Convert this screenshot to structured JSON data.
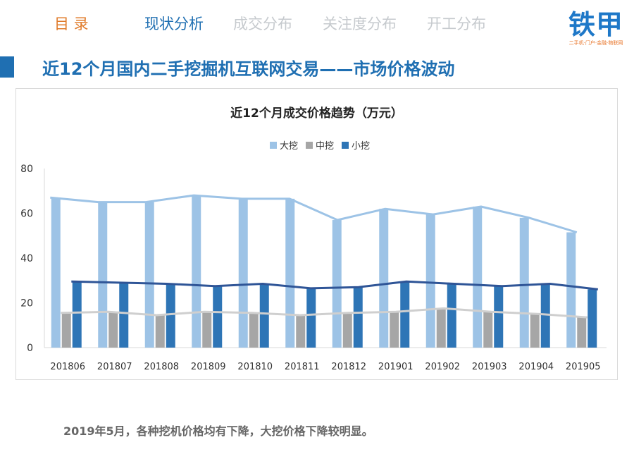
{
  "nav": {
    "items": [
      {
        "label": "目 录",
        "state": "toc"
      },
      {
        "label": "现状分析",
        "state": "active"
      },
      {
        "label": "成交分布",
        "state": "inactive"
      },
      {
        "label": "关注度分布",
        "state": "inactive"
      },
      {
        "label": "开工分布",
        "state": "inactive"
      }
    ]
  },
  "logo": {
    "text": "铁甲",
    "subtitle": "二手机·门户·金融·物联网"
  },
  "page_title": "近12个月国内二手挖掘机互联网交易——市场价格波动",
  "chart_data": {
    "type": "bar",
    "title": "近12个月成交价格趋势（万元）",
    "categories": [
      "201806",
      "201807",
      "201808",
      "201809",
      "201810",
      "201811",
      "201812",
      "201901",
      "201902",
      "201903",
      "201904",
      "201905"
    ],
    "series": [
      {
        "name": "大挖",
        "color": "#9dc3e6",
        "values": [
          67,
          65,
          65,
          68,
          66.5,
          66.5,
          57,
          62,
          59.5,
          63,
          58,
          51.5
        ]
      },
      {
        "name": "中挖",
        "color": "#a6a6a6",
        "values": [
          15.5,
          16,
          14.5,
          16,
          15.5,
          14.5,
          15.5,
          16,
          17.5,
          16,
          15,
          13.5
        ]
      },
      {
        "name": "小挖",
        "color": "#2e75b6",
        "values": [
          29.5,
          29,
          28.5,
          27.5,
          28.5,
          26.5,
          27,
          29.5,
          28.5,
          27.5,
          28.5,
          26
        ]
      }
    ],
    "trend_lines": [
      {
        "series": "大挖",
        "color": "#9dc3e6"
      },
      {
        "series": "中挖",
        "color": "#cfcfcf"
      },
      {
        "series": "小挖",
        "color": "#2f5597"
      }
    ],
    "yaxis": {
      "ticks": [
        0,
        20,
        40,
        60,
        80
      ]
    },
    "ylim": [
      0,
      80
    ],
    "legend_position": "top",
    "grid": false
  },
  "note": "2019年5月，各种挖机价格均有下降，大挖价格下降较明显。"
}
